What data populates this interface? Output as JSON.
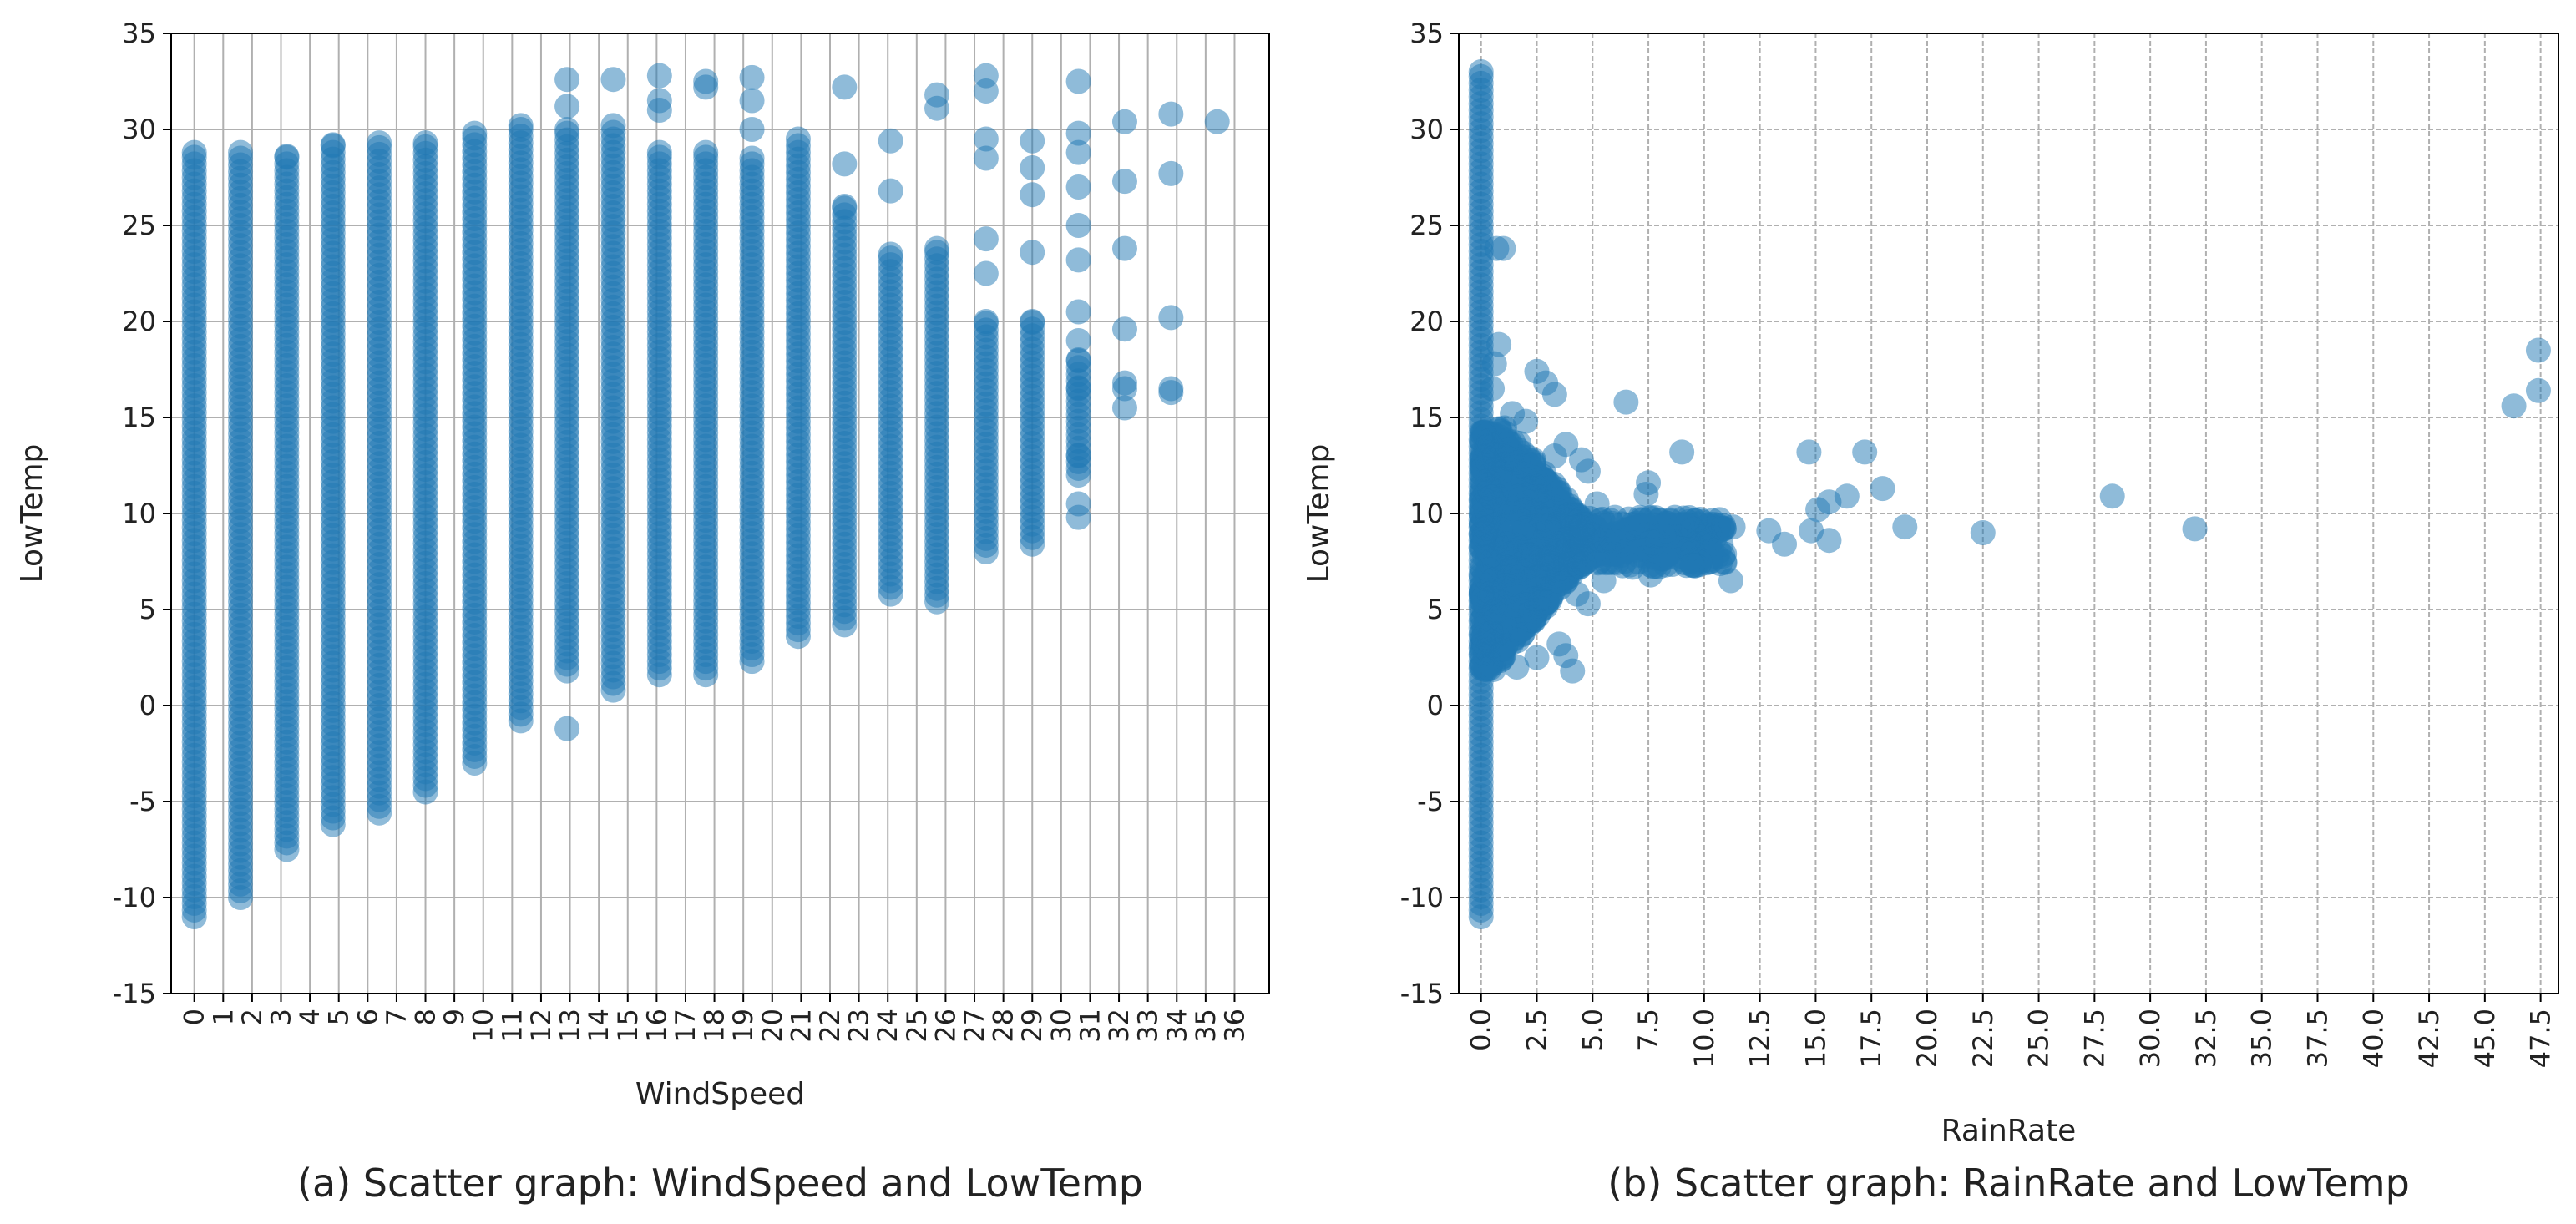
{
  "chart_data": [
    {
      "type": "scatter",
      "caption": "(a) Scatter graph: WindSpeed and LowTemp",
      "xlabel": "WindSpeed",
      "ylabel": "LowTemp",
      "xlim": [
        -0.8,
        37.2
      ],
      "ylim": [
        -15,
        35
      ],
      "x_ticks": [
        0,
        1,
        2,
        3,
        4,
        5,
        6,
        7,
        8,
        9,
        10,
        11,
        12,
        13,
        14,
        15,
        16,
        17,
        18,
        19,
        20,
        21,
        22,
        23,
        24,
        25,
        26,
        27,
        28,
        29,
        30,
        31,
        32,
        33,
        34,
        35,
        36
      ],
      "x_tick_labels": [
        "0",
        "1",
        "2",
        "3",
        "4",
        "5",
        "6",
        "7",
        "8",
        "9",
        "10",
        "11",
        "12",
        "13",
        "14",
        "15",
        "16",
        "17",
        "18",
        "19",
        "20",
        "21",
        "22",
        "23",
        "24",
        "25",
        "26",
        "27",
        "28",
        "29",
        "30",
        "31",
        "32",
        "33",
        "34",
        "35",
        "36"
      ],
      "y_ticks": [
        -15,
        -10,
        -5,
        0,
        5,
        10,
        15,
        20,
        25,
        30,
        35
      ],
      "grid": true,
      "marker_color": "#1f77b4",
      "marker_alpha": 0.5,
      "series": [
        {
          "name": "WindSpeed vs LowTemp",
          "columns": [
            {
              "x": 0,
              "low": -11,
              "high": 28.8
            },
            {
              "x": 1.6,
              "low": -10,
              "high": 28.8
            },
            {
              "x": 3.2,
              "low": -7.5,
              "high": 28.6
            },
            {
              "x": 4.8,
              "low": -6.2,
              "high": 29.2
            },
            {
              "x": 6.4,
              "low": -5.6,
              "high": 29.3
            },
            {
              "x": 8,
              "low": -4.5,
              "high": 29.3
            },
            {
              "x": 9.7,
              "low": -3.0,
              "high": 29.8
            },
            {
              "x": 11.3,
              "low": -0.8,
              "high": 30.2
            },
            {
              "x": 12.9,
              "low": 1.8,
              "high": 30.0
            },
            {
              "x": 14.5,
              "low": 0.8,
              "high": 30.2
            },
            {
              "x": 16.1,
              "low": 1.6,
              "high": 28.8
            },
            {
              "x": 17.7,
              "low": 1.6,
              "high": 28.8
            },
            {
              "x": 19.3,
              "low": 2.3,
              "high": 28.5
            },
            {
              "x": 20.9,
              "low": 3.6,
              "high": 29.5
            },
            {
              "x": 22.5,
              "low": 4.2,
              "high": 26.0
            },
            {
              "x": 24.1,
              "low": 5.8,
              "high": 23.5
            },
            {
              "x": 25.7,
              "low": 5.4,
              "high": 23.8
            },
            {
              "x": 27.4,
              "low": 8.0,
              "high": 20.0
            },
            {
              "x": 29,
              "low": 8.4,
              "high": 20.0
            },
            {
              "x": 30.6,
              "low": 12.0,
              "high": 18.0
            }
          ],
          "points": [
            {
              "x": 12.9,
              "y": -1.2
            },
            {
              "x": 12.9,
              "y": 32.6
            },
            {
              "x": 12.9,
              "y": 31.2
            },
            {
              "x": 14.5,
              "y": 32.6
            },
            {
              "x": 16.1,
              "y": 32.8
            },
            {
              "x": 16.1,
              "y": 31.5
            },
            {
              "x": 16.1,
              "y": 31.0
            },
            {
              "x": 17.7,
              "y": 32.5
            },
            {
              "x": 17.7,
              "y": 32.2
            },
            {
              "x": 19.3,
              "y": 32.7
            },
            {
              "x": 19.3,
              "y": 31.5
            },
            {
              "x": 19.3,
              "y": 30.0
            },
            {
              "x": 22.5,
              "y": 32.2
            },
            {
              "x": 22.5,
              "y": 28.2
            },
            {
              "x": 24.1,
              "y": 29.4
            },
            {
              "x": 24.1,
              "y": 26.8
            },
            {
              "x": 25.7,
              "y": 31.8
            },
            {
              "x": 25.7,
              "y": 31.1
            },
            {
              "x": 27.4,
              "y": 32.8
            },
            {
              "x": 27.4,
              "y": 32.0
            },
            {
              "x": 27.4,
              "y": 29.5
            },
            {
              "x": 27.4,
              "y": 28.5
            },
            {
              "x": 27.4,
              "y": 24.3
            },
            {
              "x": 27.4,
              "y": 22.5
            },
            {
              "x": 29,
              "y": 29.4
            },
            {
              "x": 29,
              "y": 28.0
            },
            {
              "x": 29,
              "y": 26.6
            },
            {
              "x": 29,
              "y": 23.6
            },
            {
              "x": 30.6,
              "y": 32.5
            },
            {
              "x": 30.6,
              "y": 29.8
            },
            {
              "x": 30.6,
              "y": 28.8
            },
            {
              "x": 30.6,
              "y": 27.0
            },
            {
              "x": 30.6,
              "y": 25.0
            },
            {
              "x": 30.6,
              "y": 23.2
            },
            {
              "x": 30.6,
              "y": 20.5
            },
            {
              "x": 30.6,
              "y": 19.0
            },
            {
              "x": 30.6,
              "y": 16.5
            },
            {
              "x": 30.6,
              "y": 13.0
            },
            {
              "x": 30.6,
              "y": 10.5
            },
            {
              "x": 30.6,
              "y": 9.8
            },
            {
              "x": 32.2,
              "y": 30.4
            },
            {
              "x": 32.2,
              "y": 27.3
            },
            {
              "x": 32.2,
              "y": 23.8
            },
            {
              "x": 32.2,
              "y": 19.6
            },
            {
              "x": 32.2,
              "y": 16.8
            },
            {
              "x": 32.2,
              "y": 16.5
            },
            {
              "x": 32.2,
              "y": 15.5
            },
            {
              "x": 33.8,
              "y": 30.8
            },
            {
              "x": 33.8,
              "y": 27.7
            },
            {
              "x": 33.8,
              "y": 20.2
            },
            {
              "x": 33.8,
              "y": 16.5
            },
            {
              "x": 33.8,
              "y": 16.3
            },
            {
              "x": 35.4,
              "y": 30.4
            }
          ]
        }
      ]
    },
    {
      "type": "scatter",
      "caption": "(b) Scatter graph: RainRate and LowTemp",
      "xlabel": "RainRate",
      "ylabel": "LowTemp",
      "xlim": [
        -1.0,
        48.3
      ],
      "ylim": [
        -15,
        35
      ],
      "x_ticks": [
        0,
        2.5,
        5,
        7.5,
        10,
        12.5,
        15,
        17.5,
        20,
        22.5,
        25,
        27.5,
        30,
        32.5,
        35,
        37.5,
        40,
        42.5,
        45,
        47.5
      ],
      "x_tick_labels": [
        "0.0",
        "2.5",
        "5.0",
        "7.5",
        "10.0",
        "12.5",
        "15.0",
        "17.5",
        "20.0",
        "22.5",
        "25.0",
        "27.5",
        "30.0",
        "32.5",
        "35.0",
        "37.5",
        "40.0",
        "42.5",
        "45.0",
        "47.5"
      ],
      "y_ticks": [
        -15,
        -10,
        -5,
        0,
        5,
        10,
        15,
        20,
        25,
        30,
        35
      ],
      "grid": true,
      "grid_style": "dashed",
      "marker_color": "#1f77b4",
      "marker_alpha": 0.5,
      "series": [
        {
          "name": "RainRate vs LowTemp",
          "columns": [
            {
              "x": 0,
              "low": -11,
              "high": 33
            }
          ],
          "cluster": {
            "x_min": 0,
            "x_max": 4.5,
            "low": 1.8,
            "high": 14.5
          },
          "points": [
            {
              "x": 0.7,
              "y": 23.8
            },
            {
              "x": 1.0,
              "y": 23.8
            },
            {
              "x": 0.8,
              "y": 18.8
            },
            {
              "x": 0.6,
              "y": 17.8
            },
            {
              "x": 0.5,
              "y": 16.5
            },
            {
              "x": 2.5,
              "y": 17.4
            },
            {
              "x": 2.9,
              "y": 16.8
            },
            {
              "x": 3.3,
              "y": 16.2
            },
            {
              "x": 6.5,
              "y": 15.8
            },
            {
              "x": 1.4,
              "y": 15.2
            },
            {
              "x": 2.0,
              "y": 14.8
            },
            {
              "x": 3.8,
              "y": 13.6
            },
            {
              "x": 3.3,
              "y": 13.0
            },
            {
              "x": 4.5,
              "y": 12.8
            },
            {
              "x": 4.8,
              "y": 12.2
            },
            {
              "x": 7.5,
              "y": 11.6
            },
            {
              "x": 7.4,
              "y": 11.0
            },
            {
              "x": 9.0,
              "y": 13.2
            },
            {
              "x": 5.2,
              "y": 10.5
            },
            {
              "x": 6.0,
              "y": 9.8
            },
            {
              "x": 7.0,
              "y": 9.5
            },
            {
              "x": 8.0,
              "y": 9.3
            },
            {
              "x": 8.5,
              "y": 9.6
            },
            {
              "x": 9.2,
              "y": 9.4
            },
            {
              "x": 9.8,
              "y": 9.0
            },
            {
              "x": 10.3,
              "y": 9.2
            },
            {
              "x": 10.9,
              "y": 9.2
            },
            {
              "x": 11.3,
              "y": 9.3
            },
            {
              "x": 9.5,
              "y": 7.3
            },
            {
              "x": 8.3,
              "y": 7.8
            },
            {
              "x": 7.6,
              "y": 6.8
            },
            {
              "x": 6.8,
              "y": 7.2
            },
            {
              "x": 5.5,
              "y": 6.5
            },
            {
              "x": 4.8,
              "y": 5.3
            },
            {
              "x": 4.3,
              "y": 5.8
            },
            {
              "x": 3.8,
              "y": 2.6
            },
            {
              "x": 4.1,
              "y": 1.8
            },
            {
              "x": 3.5,
              "y": 3.2
            },
            {
              "x": 1.6,
              "y": 2.0
            },
            {
              "x": 2.5,
              "y": 2.5
            },
            {
              "x": 11.2,
              "y": 6.5
            },
            {
              "x": 12.9,
              "y": 9.1
            },
            {
              "x": 13.6,
              "y": 8.4
            },
            {
              "x": 14.7,
              "y": 13.2
            },
            {
              "x": 14.8,
              "y": 9.1
            },
            {
              "x": 15.1,
              "y": 10.2
            },
            {
              "x": 15.6,
              "y": 10.6
            },
            {
              "x": 15.6,
              "y": 8.6
            },
            {
              "x": 16.4,
              "y": 10.9
            },
            {
              "x": 17.2,
              "y": 13.2
            },
            {
              "x": 18.0,
              "y": 11.3
            },
            {
              "x": 19.0,
              "y": 9.3
            },
            {
              "x": 22.5,
              "y": 9.0
            },
            {
              "x": 28.3,
              "y": 10.9
            },
            {
              "x": 32.0,
              "y": 9.2
            },
            {
              "x": 46.3,
              "y": 15.6
            },
            {
              "x": 47.4,
              "y": 18.5
            },
            {
              "x": 47.4,
              "y": 16.4
            }
          ]
        }
      ]
    }
  ]
}
